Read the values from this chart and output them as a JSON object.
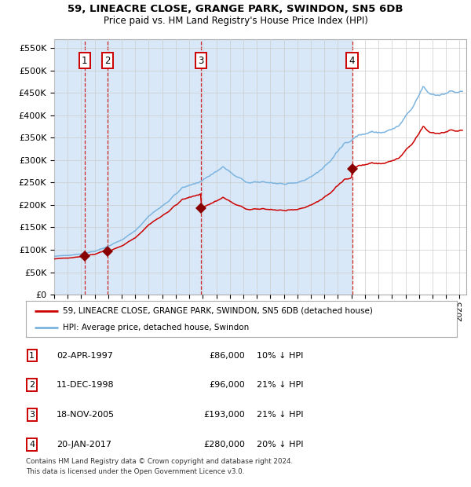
{
  "title1": "59, LINEACRE CLOSE, GRANGE PARK, SWINDON, SN5 6DB",
  "title2": "Price paid vs. HM Land Registry's House Price Index (HPI)",
  "ylabel_ticks": [
    "£0",
    "£50K",
    "£100K",
    "£150K",
    "£200K",
    "£250K",
    "£300K",
    "£350K",
    "£400K",
    "£450K",
    "£500K",
    "£550K"
  ],
  "ytick_vals": [
    0,
    50000,
    100000,
    150000,
    200000,
    250000,
    300000,
    350000,
    400000,
    450000,
    500000,
    550000
  ],
  "ylim": [
    0,
    570000
  ],
  "xlim_start": 1995.0,
  "xlim_end": 2025.5,
  "sales": [
    {
      "label": "1",
      "date": "1997-04-02",
      "price": 86000,
      "x": 1997.25
    },
    {
      "label": "2",
      "date": "1998-12-11",
      "price": 96000,
      "x": 1998.95
    },
    {
      "label": "3",
      "date": "2005-11-18",
      "price": 193000,
      "x": 2005.88
    },
    {
      "label": "4",
      "date": "2017-01-20",
      "price": 280000,
      "x": 2017.05
    }
  ],
  "hpi_color": "#7cb4e0",
  "price_color": "#cc0000",
  "sale_marker_color": "#880000",
  "vline_color": "#cc0000",
  "shade_color": "#d8e8f8",
  "grid_color": "#cccccc",
  "bg_color": "#ffffff",
  "legend_label_red": "59, LINEACRE CLOSE, GRANGE PARK, SWINDON, SN5 6DB (detached house)",
  "legend_label_blue": "HPI: Average price, detached house, Swindon",
  "footer": "Contains HM Land Registry data © Crown copyright and database right 2024.\nThis data is licensed under the Open Government Licence v3.0.",
  "table_data": [
    [
      "1",
      "02-APR-1997",
      "£86,000",
      "10% ↓ HPI"
    ],
    [
      "2",
      "11-DEC-1998",
      "£96,000",
      "21% ↓ HPI"
    ],
    [
      "3",
      "18-NOV-2005",
      "£193,000",
      "21% ↓ HPI"
    ],
    [
      "4",
      "20-JAN-2017",
      "£280,000",
      "20% ↓ HPI"
    ]
  ],
  "hpi_anchors": [
    [
      1995.0,
      85000
    ],
    [
      1996.0,
      88000
    ],
    [
      1997.0,
      91000
    ],
    [
      1998.0,
      97000
    ],
    [
      1999.0,
      108000
    ],
    [
      2000.0,
      122000
    ],
    [
      2001.0,
      142000
    ],
    [
      2002.0,
      175000
    ],
    [
      2003.5,
      210000
    ],
    [
      2004.5,
      238000
    ],
    [
      2005.5,
      248000
    ],
    [
      2006.5,
      265000
    ],
    [
      2007.5,
      285000
    ],
    [
      2008.5,
      262000
    ],
    [
      2009.5,
      248000
    ],
    [
      2010.5,
      252000
    ],
    [
      2011.5,
      248000
    ],
    [
      2012.5,
      245000
    ],
    [
      2013.5,
      255000
    ],
    [
      2014.5,
      272000
    ],
    [
      2015.5,
      300000
    ],
    [
      2016.5,
      338000
    ],
    [
      2017.5,
      355000
    ],
    [
      2018.5,
      362000
    ],
    [
      2019.5,
      362000
    ],
    [
      2020.5,
      375000
    ],
    [
      2021.5,
      415000
    ],
    [
      2022.3,
      462000
    ],
    [
      2022.8,
      448000
    ],
    [
      2023.5,
      445000
    ],
    [
      2024.0,
      452000
    ],
    [
      2025.3,
      452000
    ]
  ]
}
